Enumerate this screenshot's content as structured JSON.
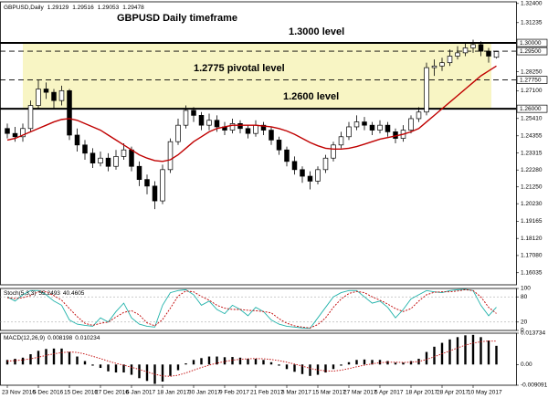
{
  "chart_data": [
    {
      "type": "candlestick",
      "title": "GBPUSD,Daily",
      "annotations": [
        "GBPUSD Daily timeframe",
        "1.3000 level",
        "1.2775 pivotal level",
        "1.2600 level"
      ],
      "categories": [
        "23 Nov 2016",
        null,
        null,
        null,
        "5 Dec 2016",
        null,
        null,
        null,
        "15 Dec 2016",
        null,
        null,
        null,
        "27 Dec 2016",
        null,
        null,
        null,
        "6 Jan 2017",
        null,
        null,
        null,
        "18 Jan 2017",
        null,
        null,
        null,
        "30 Jan 2017",
        null,
        null,
        null,
        "9 Feb 2017",
        null,
        null,
        null,
        "21 Feb 2017",
        null,
        null,
        null,
        "3 Mar 2017",
        null,
        null,
        null,
        "15 Mar 2017",
        null,
        null,
        null,
        "27 Mar 2017",
        null,
        null,
        null,
        "6 Apr 2017",
        null,
        null,
        null,
        "18 Apr 2017",
        null,
        null,
        null,
        "28 Apr 2017",
        null,
        null,
        null,
        "10 May 2017",
        null,
        null,
        null
      ],
      "open": [
        1.248,
        1.245,
        1.243,
        1.248,
        1.262,
        1.272,
        1.27,
        1.265,
        1.271,
        1.244,
        1.238,
        1.233,
        1.227,
        1.23,
        1.225,
        1.231,
        1.235,
        1.225,
        1.217,
        1.213,
        1.204,
        1.223,
        1.24,
        1.25,
        1.259,
        1.256,
        1.25,
        1.253,
        1.249,
        1.247,
        1.251,
        1.248,
        1.245,
        1.25,
        1.247,
        1.241,
        1.235,
        1.228,
        1.223,
        1.219,
        1.216,
        1.223,
        1.23,
        1.238,
        1.243,
        1.249,
        1.252,
        1.25,
        1.247,
        1.25,
        1.246,
        1.242,
        1.247,
        1.254,
        1.258,
        1.285,
        1.286,
        1.288,
        1.292,
        1.294,
        1.297,
        1.299,
        1.295,
        1.29129
      ],
      "high": [
        1.251,
        1.249,
        1.251,
        1.265,
        1.2775,
        1.276,
        1.272,
        1.274,
        1.272,
        1.248,
        1.241,
        1.236,
        1.234,
        1.233,
        1.235,
        1.239,
        1.237,
        1.228,
        1.22,
        1.216,
        1.226,
        1.242,
        1.254,
        1.262,
        1.261,
        1.258,
        1.257,
        1.256,
        1.252,
        1.254,
        1.253,
        1.25,
        1.253,
        1.252,
        1.249,
        1.243,
        1.237,
        1.231,
        1.225,
        1.222,
        1.225,
        1.232,
        1.24,
        1.246,
        1.252,
        1.256,
        1.255,
        1.252,
        1.253,
        1.252,
        1.248,
        1.25,
        1.256,
        1.261,
        1.288,
        1.29,
        1.291,
        1.296,
        1.298,
        1.3,
        1.302,
        1.301,
        1.297,
        1.29516
      ],
      "low": [
        1.242,
        1.24,
        1.24,
        1.246,
        1.26,
        1.266,
        1.26,
        1.262,
        1.241,
        1.234,
        1.229,
        1.224,
        1.225,
        1.222,
        1.223,
        1.229,
        1.222,
        1.213,
        1.208,
        1.199,
        1.202,
        1.221,
        1.238,
        1.248,
        1.252,
        1.247,
        1.247,
        1.246,
        1.244,
        1.245,
        1.245,
        1.242,
        1.243,
        1.244,
        1.238,
        1.232,
        1.225,
        1.22,
        1.215,
        1.211,
        1.214,
        1.221,
        1.228,
        1.236,
        1.241,
        1.247,
        1.247,
        1.244,
        1.245,
        1.243,
        1.239,
        1.24,
        1.245,
        1.252,
        1.256,
        1.28,
        1.283,
        1.286,
        1.29,
        1.292,
        1.294,
        1.292,
        1.288,
        1.29053
      ],
      "close": [
        1.245,
        1.243,
        1.248,
        1.262,
        1.272,
        1.27,
        1.265,
        1.271,
        1.244,
        1.238,
        1.233,
        1.227,
        1.23,
        1.225,
        1.231,
        1.235,
        1.225,
        1.217,
        1.213,
        1.204,
        1.223,
        1.24,
        1.25,
        1.259,
        1.256,
        1.25,
        1.253,
        1.249,
        1.247,
        1.251,
        1.248,
        1.245,
        1.25,
        1.247,
        1.241,
        1.235,
        1.228,
        1.223,
        1.219,
        1.216,
        1.223,
        1.23,
        1.238,
        1.243,
        1.249,
        1.252,
        1.25,
        1.247,
        1.25,
        1.246,
        1.242,
        1.247,
        1.254,
        1.258,
        1.285,
        1.286,
        1.288,
        1.292,
        1.294,
        1.297,
        1.299,
        1.295,
        1.292,
        1.29478
      ],
      "overlay": {
        "color": "#c00000",
        "values": [
          1.241,
          1.242,
          1.244,
          1.246,
          1.248,
          1.25,
          1.252,
          1.2535,
          1.254,
          1.253,
          1.251,
          1.249,
          1.247,
          1.244,
          1.241,
          1.238,
          1.235,
          1.232,
          1.23,
          1.2285,
          1.228,
          1.229,
          1.232,
          1.236,
          1.24,
          1.243,
          1.246,
          1.248,
          1.249,
          1.25,
          1.25,
          1.25,
          1.25,
          1.2495,
          1.249,
          1.248,
          1.2465,
          1.2445,
          1.242,
          1.2395,
          1.2375,
          1.236,
          1.2355,
          1.2355,
          1.236,
          1.237,
          1.2385,
          1.24,
          1.2415,
          1.2425,
          1.2435,
          1.2445,
          1.246,
          1.248,
          1.252,
          1.256,
          1.26,
          1.264,
          1.268,
          1.272,
          1.276,
          1.28,
          1.283,
          1.286
        ]
      },
      "levels": [
        {
          "value": 1.3,
          "label": "1.30000",
          "style": "solid"
        },
        {
          "value": 1.295,
          "label": "1.29500",
          "style": "dashed"
        },
        {
          "value": 1.2775,
          "label": "1.27750",
          "style": "dashed"
        },
        {
          "value": 1.26,
          "label": "1.26000",
          "style": "solid"
        }
      ],
      "zone_color": "#f8f5c4",
      "ylim": [
        1.153,
        1.325
      ],
      "yticks": [
        {
          "value": 1.324,
          "label": "1.32400"
        },
        {
          "value": 1.31235,
          "label": "1.31235"
        },
        {
          "value": 1.2825,
          "label": "1.28250"
        },
        {
          "value": 1.271,
          "label": "1.27100"
        },
        {
          "value": 1.2541,
          "label": "1.25410"
        },
        {
          "value": 1.24355,
          "label": "1.24355"
        },
        {
          "value": 1.23315,
          "label": "1.23315"
        },
        {
          "value": 1.2228,
          "label": "1.22280"
        },
        {
          "value": 1.2125,
          "label": "1.21250"
        },
        {
          "value": 1.2023,
          "label": "1.20230"
        },
        {
          "value": 1.19165,
          "label": "1.19165"
        },
        {
          "value": 1.1812,
          "label": "1.18120"
        },
        {
          "value": 1.1708,
          "label": "1.17080"
        },
        {
          "value": 1.16035,
          "label": "1.16035"
        }
      ]
    },
    {
      "type": "line",
      "title": "Stoch(5,3,3)",
      "series": [
        {
          "color": "#20b2aa",
          "dashed": false,
          "values": [
            80,
            70,
            85,
            95,
            95,
            85,
            70,
            60,
            25,
            15,
            12,
            10,
            30,
            20,
            45,
            65,
            30,
            15,
            10,
            8,
            60,
            90,
            95,
            97,
            85,
            60,
            70,
            50,
            40,
            60,
            50,
            35,
            55,
            45,
            25,
            15,
            10,
            8,
            6,
            5,
            30,
            55,
            80,
            90,
            95,
            95,
            80,
            65,
            70,
            55,
            30,
            50,
            75,
            85,
            95,
            92,
            90,
            95,
            97,
            98,
            95,
            60,
            35,
            55.2493
          ]
        },
        {
          "color": "#c00000",
          "dashed": true,
          "values": [
            78,
            76,
            78,
            83,
            92,
            92,
            83,
            72,
            52,
            33,
            17,
            12,
            17,
            20,
            32,
            43,
            47,
            37,
            18,
            11,
            26,
            53,
            82,
            94,
            92,
            81,
            72,
            60,
            53,
            50,
            50,
            48,
            47,
            45,
            42,
            28,
            17,
            11,
            8,
            6,
            14,
            30,
            55,
            75,
            88,
            93,
            90,
            80,
            72,
            63,
            52,
            45,
            52,
            70,
            85,
            91,
            92,
            92,
            94,
            97,
            95,
            80,
            55,
            40.4605
          ]
        }
      ],
      "ylim": [
        0,
        100
      ],
      "yticks": [
        100,
        80,
        20,
        0
      ]
    },
    {
      "type": "bar",
      "title": "MACD(12,26,9)",
      "color": "#000000",
      "values": [
        0.002,
        0.0025,
        0.003,
        0.0045,
        0.006,
        0.0068,
        0.007,
        0.007,
        0.0055,
        0.0035,
        0.0015,
        -0.0005,
        -0.0015,
        -0.003,
        -0.0035,
        -0.0035,
        -0.0045,
        -0.006,
        -0.0072,
        -0.0085,
        -0.0075,
        -0.005,
        -0.0025,
        0.0005,
        0.002,
        0.0028,
        0.0035,
        0.0035,
        0.0032,
        0.0033,
        0.003,
        0.0025,
        0.0025,
        0.002,
        0.001,
        -0.0005,
        -0.002,
        -0.0032,
        -0.0042,
        -0.005,
        -0.0045,
        -0.0035,
        -0.002,
        -0.0005,
        0.001,
        0.002,
        0.0022,
        0.002,
        0.002,
        0.0015,
        0.0008,
        0.0008,
        0.0015,
        0.0025,
        0.0055,
        0.0078,
        0.0095,
        0.011,
        0.012,
        0.0128,
        0.013,
        0.012,
        0.0105,
        0.008198
      ],
      "signal": {
        "color": "#c00000",
        "values": [
          0.0015,
          0.0017,
          0.002,
          0.0025,
          0.0032,
          0.004,
          0.0047,
          0.0052,
          0.0055,
          0.0053,
          0.0046,
          0.0036,
          0.0026,
          0.0015,
          0.0005,
          -0.0003,
          -0.0012,
          -0.0022,
          -0.0032,
          -0.0043,
          -0.005,
          -0.0052,
          -0.0047,
          -0.0037,
          -0.0025,
          -0.0013,
          -0.0003,
          0.0006,
          0.0013,
          0.0019,
          0.0023,
          0.0025,
          0.0026,
          0.0025,
          0.0022,
          0.0017,
          0.001,
          0.0002,
          -0.0007,
          -0.0017,
          -0.0024,
          -0.0028,
          -0.0029,
          -0.0025,
          -0.0018,
          -0.001,
          -0.0003,
          0.0003,
          0.0008,
          0.001,
          0.001,
          0.0009,
          0.001,
          0.0013,
          0.0022,
          0.0034,
          0.0047,
          0.006,
          0.0073,
          0.0085,
          0.0094,
          0.01,
          0.0103,
          0.010234
        ]
      },
      "ylim": [
        -0.009091,
        0.013734
      ],
      "yticks": [
        0.013734,
        {
          "value": 0,
          "label": "0.00"
        },
        -0.009091
      ]
    }
  ]
}
